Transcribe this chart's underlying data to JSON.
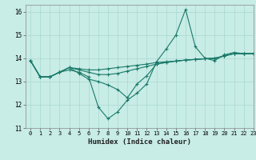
{
  "title": "",
  "xlabel": "Humidex (Indice chaleur)",
  "ylabel": "",
  "background_color": "#c8ece6",
  "grid_color": "#a8d8d0",
  "line_color": "#1a7a6a",
  "xlim": [
    -0.5,
    23
  ],
  "ylim": [
    11,
    16.3
  ],
  "yticks": [
    11,
    12,
    13,
    14,
    15,
    16
  ],
  "xticks": [
    0,
    1,
    2,
    3,
    4,
    5,
    6,
    7,
    8,
    9,
    10,
    11,
    12,
    13,
    14,
    15,
    16,
    17,
    18,
    19,
    20,
    21,
    22,
    23
  ],
  "series": [
    [
      13.9,
      13.2,
      13.2,
      13.4,
      13.5,
      13.4,
      13.2,
      11.9,
      11.4,
      11.7,
      12.2,
      12.5,
      12.9,
      13.85,
      14.4,
      15.0,
      16.1,
      14.5,
      14.0,
      13.9,
      14.15,
      14.25,
      14.2,
      14.2
    ],
    [
      13.9,
      13.2,
      13.2,
      13.4,
      13.6,
      13.35,
      13.1,
      13.0,
      12.85,
      12.65,
      12.3,
      12.9,
      13.25,
      13.75,
      13.82,
      13.88,
      13.92,
      13.95,
      13.98,
      14.0,
      14.1,
      14.2,
      14.2,
      14.2
    ],
    [
      13.9,
      13.2,
      13.2,
      13.4,
      13.6,
      13.5,
      13.4,
      13.3,
      13.3,
      13.35,
      13.45,
      13.55,
      13.65,
      13.75,
      13.82,
      13.88,
      13.92,
      13.95,
      13.98,
      14.0,
      14.1,
      14.2,
      14.2,
      14.2
    ],
    [
      13.9,
      13.2,
      13.2,
      13.4,
      13.6,
      13.55,
      13.5,
      13.5,
      13.55,
      13.6,
      13.65,
      13.7,
      13.75,
      13.82,
      13.85,
      13.88,
      13.92,
      13.95,
      13.98,
      14.0,
      14.1,
      14.2,
      14.2,
      14.2
    ]
  ]
}
